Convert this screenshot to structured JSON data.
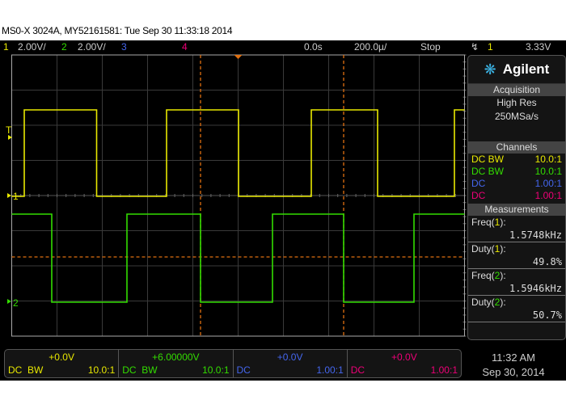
{
  "title": "MS0-X 3024A, MY52161581: Tue Sep 30 11:33:18 2014",
  "header": {
    "ch1_num": "1",
    "ch1_scale": "2.00V/",
    "ch2_num": "2",
    "ch2_scale": "2.00V/",
    "ch3_num": "3",
    "ch4_num": "4",
    "time_offset": "0.0s",
    "time_scale": "200.0µ/",
    "run_state": "Stop",
    "trigger_icon": "falling-edge-trigger-icon",
    "trigger_source": "1",
    "trigger_level": "3.33V"
  },
  "colors": {
    "ch1": "#e8e800",
    "ch2": "#33dd00",
    "ch3": "#4466ee",
    "ch4": "#ee0077",
    "cursor": "#e07010"
  },
  "panel": {
    "brand": "Agilent",
    "acq_title": "Acquisition",
    "acq_mode": "High Res",
    "acq_rate": "250MSa/s",
    "channels_title": "Channels",
    "channels": [
      {
        "coupling": "DC BW",
        "probe": "10.0:1"
      },
      {
        "coupling": "DC BW",
        "probe": "10.0:1"
      },
      {
        "coupling": "DC",
        "probe": "1.00:1"
      },
      {
        "coupling": "DC",
        "probe": "1.00:1"
      }
    ],
    "meas_title": "Measurements",
    "measurements": [
      {
        "name": "Freq(",
        "ch": "1",
        "end": "):",
        "value": "1.5748kHz"
      },
      {
        "name": "Duty(",
        "ch": "1",
        "end": "):",
        "value": "49.8%"
      },
      {
        "name": "Freq(",
        "ch": "2",
        "end": "):",
        "value": "1.5946kHz"
      },
      {
        "name": "Duty(",
        "ch": "2",
        "end": "):",
        "value": "50.7%"
      }
    ]
  },
  "plot": {
    "trigger_label": "T",
    "ch1_marker": "1",
    "ch2_marker": "2"
  },
  "bottom": [
    {
      "offset": "+0.0V",
      "coupling": "DC",
      "bw": "BW",
      "probe": "10.0:1"
    },
    {
      "offset": "+6.00000V",
      "coupling": "DC",
      "bw": "BW",
      "probe": "10.0:1"
    },
    {
      "offset": "+0.0V",
      "coupling": "DC",
      "bw": "",
      "probe": "1.00:1"
    },
    {
      "offset": "+0.0V",
      "coupling": "DC",
      "bw": "",
      "probe": "1.00:1"
    }
  ],
  "clock": {
    "time": "11:32 AM",
    "date": "Sep 30, 2014"
  }
}
